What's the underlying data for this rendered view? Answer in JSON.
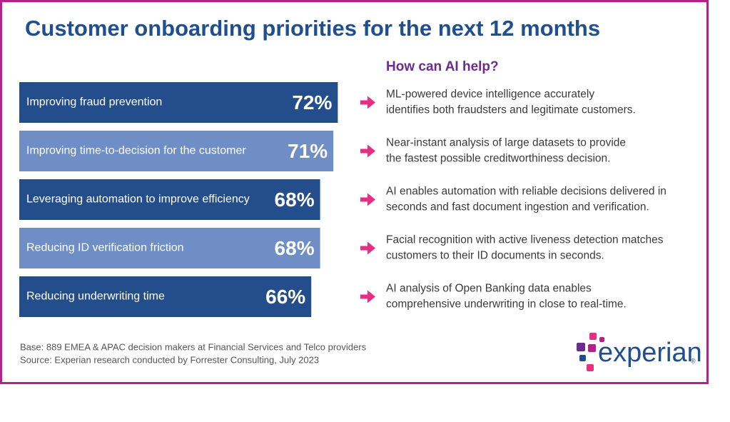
{
  "chart_data": {
    "type": "bar",
    "orientation": "horizontal",
    "title": "Customer onboarding priorities for the next 12 months",
    "subtitle": "How can AI help?",
    "categories": [
      "Improving fraud prevention",
      "Improving time-to-decision for the customer",
      "Leveraging automation to improve efficiency",
      "Reducing ID verification friction",
      "Reducing underwriting time"
    ],
    "values": [
      72,
      71,
      68,
      68,
      66
    ],
    "value_labels": [
      "72%",
      "71%",
      "68%",
      "68%",
      "66%"
    ],
    "colors": [
      "#244d8b",
      "#6e8ec5",
      "#244d8b",
      "#6e8ec5",
      "#244d8b"
    ],
    "annotations": [
      [
        "ML-powered device intelligence accurately",
        "identifies both fraudsters and legitimate customers."
      ],
      [
        "Near-instant analysis of large datasets to provide",
        "the fastest possible creditworthiness decision."
      ],
      [
        "AI enables automation with reliable decisions delivered in",
        "seconds and fast document ingestion and verification."
      ],
      [
        "Facial recognition with active liveness detection matches",
        "customers to their ID documents in seconds."
      ],
      [
        "AI analysis of Open Banking data enables",
        "comprehensive underwriting in close to real-time."
      ]
    ],
    "notes": [
      "Base: 889 EMEA & APAC decision makers at Financial Services and Telco providers",
      "Source: Experian research conducted by Forrester Consulting, July 2023"
    ],
    "logo": "experian",
    "logo_trademark": "®"
  }
}
